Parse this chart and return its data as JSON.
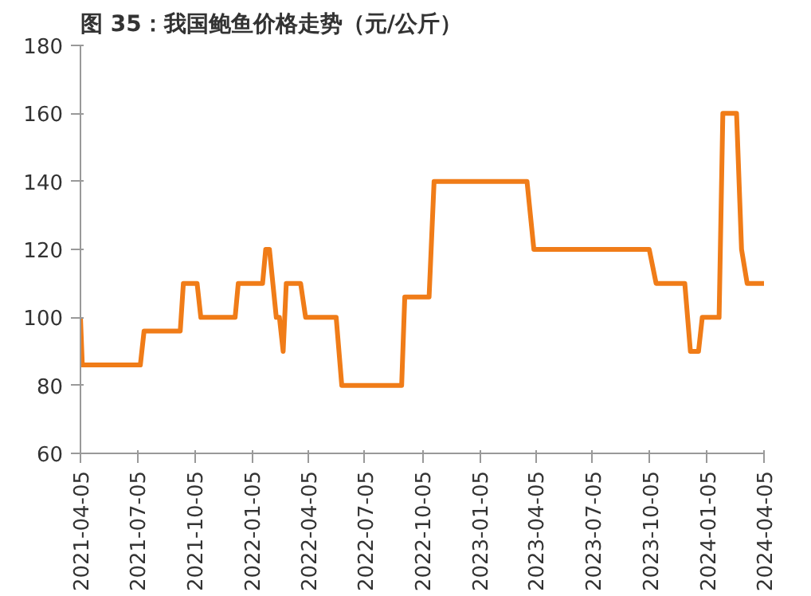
{
  "chart_data": {
    "type": "line",
    "title": "图 35：我国鲍鱼价格走势（元/公斤）",
    "x": [
      "2021-04-05",
      "2021-04-08",
      "2021-07-10",
      "2021-07-16",
      "2021-09-12",
      "2021-09-17",
      "2021-10-09",
      "2021-10-15",
      "2021-12-09",
      "2021-12-14",
      "2022-01-22",
      "2022-01-27",
      "2022-02-02",
      "2022-02-13",
      "2022-02-18",
      "2022-02-24",
      "2022-03-01",
      "2022-03-24",
      "2022-04-01",
      "2022-05-20",
      "2022-05-29",
      "2022-09-02",
      "2022-09-07",
      "2022-10-16",
      "2022-10-24",
      "2023-03-22",
      "2023-04-02",
      "2023-10-04",
      "2023-10-15",
      "2023-11-30",
      "2023-12-09",
      "2023-12-22",
      "2023-12-28",
      "2024-01-24",
      "2024-01-30",
      "2024-02-21",
      "2024-02-29",
      "2024-03-09",
      "2024-04-05"
    ],
    "series": [
      {
        "color": "#f07c18",
        "values": [
          100,
          86,
          86,
          96,
          96,
          110,
          110,
          100,
          100,
          110,
          110,
          120,
          120,
          100,
          100,
          90,
          110,
          110,
          100,
          100,
          80,
          80,
          106,
          106,
          140,
          140,
          120,
          120,
          110,
          110,
          90,
          90,
          100,
          100,
          160,
          160,
          120,
          110,
          110
        ]
      }
    ],
    "xlim": [
      "2021-04-05",
      "2024-04-05"
    ],
    "xticks": [
      "2021-04-05",
      "2021-07-05",
      "2021-10-05",
      "2022-01-05",
      "2022-04-05",
      "2022-07-05",
      "2022-10-05",
      "2023-01-05",
      "2023-04-05",
      "2023-07-05",
      "2023-10-05",
      "2024-01-05",
      "2024-04-05"
    ],
    "ylim": [
      60,
      180
    ],
    "yticks": [
      60,
      80,
      100,
      120,
      140,
      160,
      180
    ],
    "grid": false,
    "marker": "none",
    "line_style": "solid"
  }
}
